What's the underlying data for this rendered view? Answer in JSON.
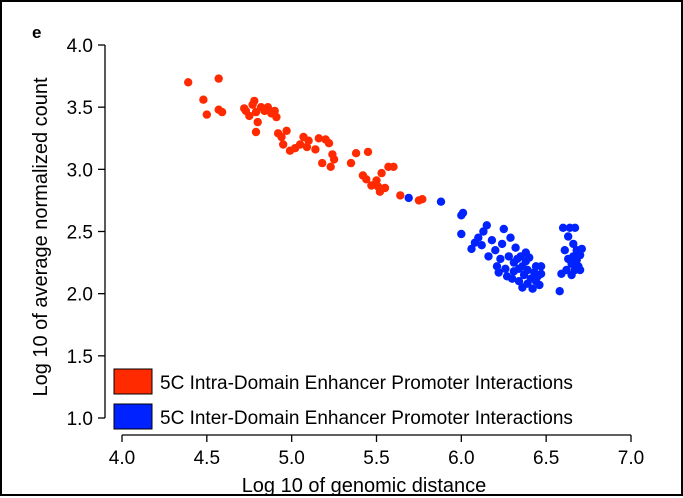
{
  "chart_data": {
    "type": "scatter",
    "panel_label": "e",
    "xlabel": "Log 10 of genomic distance",
    "ylabel": "Log 10 of average normalized count",
    "xlim": [
      4.0,
      7.0
    ],
    "ylim": [
      1.0,
      4.0
    ],
    "xticks": [
      "4.0",
      "4.5",
      "5.0",
      "5.5",
      "6.0",
      "6.5",
      "7.0"
    ],
    "yticks": [
      "1.0",
      "1.5",
      "2.0",
      "2.5",
      "3.0",
      "3.5",
      "4.0"
    ],
    "grid": false,
    "legend_position": "bottom-left",
    "series": [
      {
        "name": "5C Intra-Domain Enhancer Promoter Interactions",
        "color": "#ff2a00",
        "points": [
          [
            4.39,
            3.7
          ],
          [
            4.48,
            3.56
          ],
          [
            4.5,
            3.44
          ],
          [
            4.57,
            3.73
          ],
          [
            4.57,
            3.48
          ],
          [
            4.59,
            3.46
          ],
          [
            4.72,
            3.49
          ],
          [
            4.73,
            3.47
          ],
          [
            4.75,
            3.43
          ],
          [
            4.77,
            3.52
          ],
          [
            4.78,
            3.55
          ],
          [
            4.79,
            3.46
          ],
          [
            4.8,
            3.38
          ],
          [
            4.79,
            3.3
          ],
          [
            4.82,
            3.5
          ],
          [
            4.84,
            3.47
          ],
          [
            4.86,
            3.5
          ],
          [
            4.88,
            3.45
          ],
          [
            4.9,
            3.47
          ],
          [
            4.91,
            3.42
          ],
          [
            4.92,
            3.29
          ],
          [
            4.94,
            3.26
          ],
          [
            4.95,
            3.2
          ],
          [
            4.97,
            3.31
          ],
          [
            4.99,
            3.15
          ],
          [
            5.02,
            3.17
          ],
          [
            5.05,
            3.2
          ],
          [
            5.07,
            3.26
          ],
          [
            5.09,
            3.18
          ],
          [
            5.1,
            3.23
          ],
          [
            5.14,
            3.16
          ],
          [
            5.16,
            3.25
          ],
          [
            5.18,
            3.05
          ],
          [
            5.2,
            3.24
          ],
          [
            5.22,
            3.21
          ],
          [
            5.23,
            3.02
          ],
          [
            5.24,
            3.12
          ],
          [
            5.25,
            3.08
          ],
          [
            5.35,
            3.05
          ],
          [
            5.38,
            3.13
          ],
          [
            5.42,
            2.95
          ],
          [
            5.44,
            2.92
          ],
          [
            5.45,
            3.14
          ],
          [
            5.47,
            2.87
          ],
          [
            5.5,
            2.91
          ],
          [
            5.51,
            2.86
          ],
          [
            5.52,
            2.82
          ],
          [
            5.53,
            2.97
          ],
          [
            5.55,
            2.85
          ],
          [
            5.57,
            3.02
          ],
          [
            5.6,
            3.02
          ],
          [
            5.64,
            2.79
          ],
          [
            5.75,
            2.75
          ],
          [
            5.77,
            2.76
          ]
        ]
      },
      {
        "name": "5C Inter-Domain Enhancer Promoter Interactions",
        "color": "#0022ff",
        "points": [
          [
            5.69,
            2.77
          ],
          [
            5.88,
            2.74
          ],
          [
            6.0,
            2.63
          ],
          [
            6.01,
            2.65
          ],
          [
            6.0,
            2.48
          ],
          [
            6.06,
            2.36
          ],
          [
            6.08,
            2.41
          ],
          [
            6.1,
            2.45
          ],
          [
            6.12,
            2.39
          ],
          [
            6.13,
            2.5
          ],
          [
            6.15,
            2.55
          ],
          [
            6.16,
            2.3
          ],
          [
            6.18,
            2.43
          ],
          [
            6.2,
            2.35
          ],
          [
            6.21,
            2.22
          ],
          [
            6.22,
            2.17
          ],
          [
            6.23,
            2.28
          ],
          [
            6.24,
            2.4
          ],
          [
            6.25,
            2.52
          ],
          [
            6.26,
            2.2
          ],
          [
            6.27,
            2.14
          ],
          [
            6.28,
            2.3
          ],
          [
            6.29,
            2.45
          ],
          [
            6.3,
            2.12
          ],
          [
            6.31,
            2.25
          ],
          [
            6.31,
            2.18
          ],
          [
            6.32,
            2.37
          ],
          [
            6.33,
            2.28
          ],
          [
            6.34,
            2.2
          ],
          [
            6.34,
            2.1
          ],
          [
            6.35,
            2.3
          ],
          [
            6.36,
            2.05
          ],
          [
            6.36,
            2.22
          ],
          [
            6.37,
            2.15
          ],
          [
            6.38,
            2.33
          ],
          [
            6.38,
            2.26
          ],
          [
            6.39,
            2.08
          ],
          [
            6.39,
            2.19
          ],
          [
            6.4,
            2.29
          ],
          [
            6.41,
            2.12
          ],
          [
            6.42,
            2.04
          ],
          [
            6.43,
            2.17
          ],
          [
            6.44,
            2.22
          ],
          [
            6.44,
            2.1
          ],
          [
            6.45,
            2.14
          ],
          [
            6.46,
            2.07
          ],
          [
            6.47,
            2.22
          ],
          [
            6.47,
            2.16
          ],
          [
            6.58,
            2.02
          ],
          [
            6.59,
            2.16
          ],
          [
            6.6,
            2.53
          ],
          [
            6.61,
            2.35
          ],
          [
            6.62,
            2.19
          ],
          [
            6.63,
            2.28
          ],
          [
            6.63,
            2.46
          ],
          [
            6.64,
            2.53
          ],
          [
            6.65,
            2.24
          ],
          [
            6.65,
            2.15
          ],
          [
            6.66,
            2.3
          ],
          [
            6.66,
            2.4
          ],
          [
            6.67,
            2.19
          ],
          [
            6.67,
            2.53
          ],
          [
            6.68,
            2.27
          ],
          [
            6.68,
            2.35
          ],
          [
            6.69,
            2.22
          ],
          [
            6.7,
            2.19
          ],
          [
            6.71,
            2.36
          ],
          [
            6.7,
            2.31
          ]
        ]
      }
    ]
  }
}
